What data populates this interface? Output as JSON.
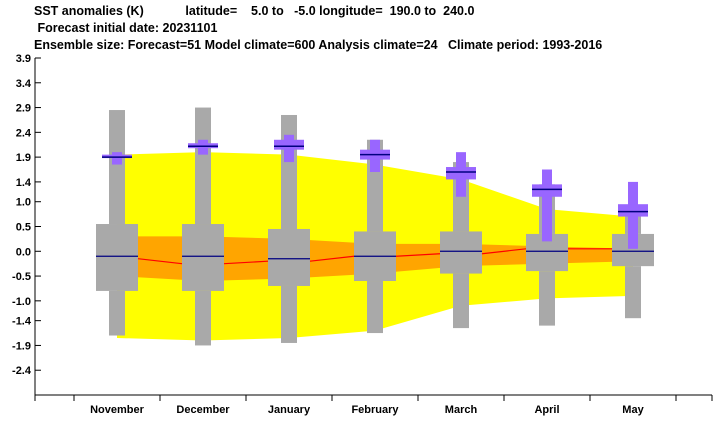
{
  "header": {
    "line1": "SST anomalies (K)            latitude=    5.0 to   -5.0 longitude=  190.0 to  240.0",
    "line2": " Forecast initial date: 20231101",
    "line3": "Ensemble size: Forecast=51 Model climate=600 Analysis climate=24   Climate period: 1993-2016"
  },
  "colors": {
    "climate_outer": "#ffff00",
    "climate_inner": "#ffa500",
    "climate_box": "#a9a9a9",
    "forecast": "#9966ff",
    "median_line": "#000080",
    "mean_line": "#ff0000"
  },
  "chart_data": {
    "type": "box",
    "categories": [
      "November",
      "December",
      "January",
      "February",
      "March",
      "April",
      "May"
    ],
    "ylim": [
      -2.9,
      3.9
    ],
    "yticks": [
      "3.9",
      "3.4",
      "2.9",
      "2.4",
      "1.9",
      "1.4",
      "1.0",
      "0.5",
      "0.0",
      "-0.5",
      "-1.0",
      "-1.4",
      "-1.9",
      "-2.4"
    ],
    "ytick_values": [
      3.9,
      3.4,
      2.9,
      2.4,
      1.9,
      1.4,
      1.0,
      0.5,
      0.0,
      -0.5,
      -1.0,
      -1.4,
      -1.9,
      -2.4
    ],
    "climate_boxes": [
      {
        "min": -1.7,
        "q1": -0.8,
        "median": -0.1,
        "q3": 0.55,
        "max": 2.85
      },
      {
        "min": -1.9,
        "q1": -0.8,
        "median": -0.1,
        "q3": 0.55,
        "max": 2.9
      },
      {
        "min": -1.85,
        "q1": -0.7,
        "median": -0.15,
        "q3": 0.45,
        "max": 2.75
      },
      {
        "min": -1.65,
        "q1": -0.6,
        "median": -0.1,
        "q3": 0.4,
        "max": 2.25
      },
      {
        "min": -1.55,
        "q1": -0.45,
        "median": 0.0,
        "q3": 0.4,
        "max": 1.8
      },
      {
        "min": -1.5,
        "q1": -0.4,
        "median": 0.0,
        "q3": 0.35,
        "max": 1.35
      },
      {
        "min": -1.35,
        "q1": -0.3,
        "median": 0.0,
        "q3": 0.35,
        "max": 0.85
      }
    ],
    "climate_outer_band": {
      "upper": [
        1.95,
        2.0,
        1.95,
        1.75,
        1.45,
        0.85,
        0.7
      ],
      "lower": [
        -0.8,
        -0.85,
        -0.8,
        -0.75,
        -0.6,
        -0.4,
        -0.35
      ]
    },
    "climate_outer_band_wide": {
      "upper": [
        1.95,
        2.0,
        1.95,
        1.75,
        1.45,
        0.85,
        0.7
      ],
      "lower": [
        -1.75,
        -1.8,
        -1.75,
        -1.6,
        -1.1,
        -0.95,
        -0.9
      ]
    },
    "climate_inner_band": {
      "upper": [
        0.3,
        0.3,
        0.25,
        0.15,
        0.15,
        0.1,
        0.05
      ],
      "lower": [
        -0.5,
        -0.6,
        -0.55,
        -0.45,
        -0.3,
        -0.25,
        -0.2
      ]
    },
    "mean_line": [
      -0.15,
      -0.25,
      -0.2,
      -0.1,
      -0.05,
      0.05,
      0.05
    ],
    "forecast_boxes": [
      {
        "min": 1.75,
        "q1": 1.88,
        "median": 1.9,
        "q3": 1.95,
        "max": 2.0
      },
      {
        "min": 1.95,
        "q1": 2.08,
        "median": 2.12,
        "q3": 2.18,
        "max": 2.25
      },
      {
        "min": 1.8,
        "q1": 2.05,
        "median": 2.12,
        "q3": 2.25,
        "max": 2.35
      },
      {
        "min": 1.6,
        "q1": 1.85,
        "median": 1.95,
        "q3": 2.05,
        "max": 2.25
      },
      {
        "min": 1.1,
        "q1": 1.45,
        "median": 1.6,
        "q3": 1.7,
        "max": 2.0
      },
      {
        "min": 0.2,
        "q1": 1.1,
        "median": 1.25,
        "q3": 1.35,
        "max": 1.65
      },
      {
        "min": 0.05,
        "q1": 0.7,
        "median": 0.8,
        "q3": 0.95,
        "max": 1.4
      }
    ]
  }
}
